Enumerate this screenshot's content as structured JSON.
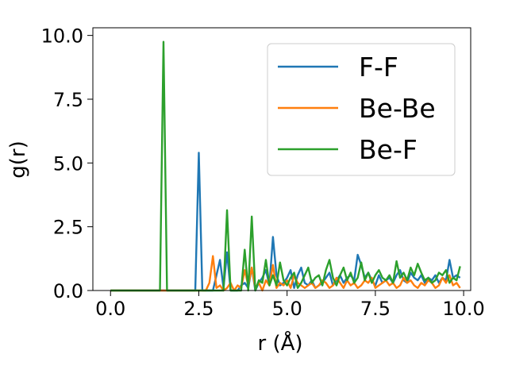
{
  "chart_data": {
    "type": "line",
    "title": "",
    "xlabel": "r (Å)",
    "ylabel": "g(r)",
    "xlim": [
      -0.5,
      10.2
    ],
    "ylim": [
      0,
      10.3
    ],
    "xticks": [
      "0.0",
      "2.5",
      "5.0",
      "7.5",
      "10.0"
    ],
    "yticks": [
      "0.0",
      "2.5",
      "5.0",
      "7.5",
      "10.0"
    ],
    "xtick_values": [
      0,
      2.5,
      5.0,
      7.5,
      10.0
    ],
    "ytick_values": [
      0,
      2.5,
      5.0,
      7.5,
      10.0
    ],
    "grid": false,
    "legend_position": "top-right",
    "x_step": 0.1,
    "series": [
      {
        "name": "F-F",
        "color": "#1f77b4",
        "values": [
          0,
          0,
          0,
          0,
          0,
          0,
          0,
          0,
          0,
          0,
          0,
          0,
          0,
          0,
          0,
          0,
          0,
          0,
          0,
          0,
          0,
          0,
          0,
          0,
          0,
          5.4,
          0,
          0,
          0,
          0,
          0.6,
          1.2,
          0.1,
          1.5,
          0,
          0,
          0,
          0.2,
          0.3,
          0.1,
          0.9,
          0,
          0.3,
          0.5,
          0.8,
          0.2,
          2.1,
          0.6,
          0.2,
          0.3,
          0.5,
          0.8,
          0.1,
          0.6,
          0.9,
          0.3,
          0.2,
          0.4,
          0.1,
          0.2,
          0.3,
          0.5,
          0.7,
          0.2,
          0.4,
          0.6,
          0.3,
          0.5,
          0.6,
          0.4,
          1.4,
          1.0,
          0.5,
          0.7,
          0.4,
          0.2,
          0.6,
          0.3,
          0.4,
          0.5,
          0.3,
          0.6,
          0.8,
          0.4,
          0.3,
          0.7,
          0.5,
          0.4,
          0.6,
          0.3,
          0.5,
          0.4,
          0.6,
          0.3,
          0.5,
          0.4,
          1.2,
          0.5,
          0.6,
          0.5
        ]
      },
      {
        "name": "Be-Be",
        "color": "#ff7f0e",
        "values": [
          0,
          0,
          0,
          0,
          0,
          0,
          0,
          0,
          0,
          0,
          0,
          0,
          0,
          0,
          0,
          0,
          0,
          0,
          0,
          0,
          0,
          0,
          0,
          0,
          0,
          0,
          0,
          0,
          0.3,
          1.35,
          0.1,
          0.2,
          0,
          0.1,
          0.3,
          0,
          0.2,
          0.1,
          0.8,
          0.2,
          0.9,
          0.1,
          0.3,
          0,
          0.4,
          0.2,
          1.0,
          0.1,
          0.3,
          0.2,
          0.4,
          0.1,
          0.6,
          0.3,
          0.2,
          0.1,
          0.2,
          0.3,
          0.1,
          0.2,
          0.4,
          0.3,
          0.1,
          0.2,
          0.5,
          0.3,
          0.1,
          0.4,
          0.2,
          0.3,
          0.1,
          0.2,
          0.4,
          0.3,
          0.5,
          0.1,
          0.2,
          0.3,
          0.4,
          0.2,
          0.3,
          0.1,
          0.2,
          0.5,
          0.3,
          0.4,
          0.2,
          0.1,
          0.3,
          0.2,
          0.4,
          0.3,
          0.1,
          0.2,
          0.5,
          0.3,
          0.6,
          0.2,
          0.3,
          0.1
        ]
      },
      {
        "name": "Be-F",
        "color": "#2ca02c",
        "values": [
          0,
          0,
          0,
          0,
          0,
          0,
          0,
          0,
          0,
          0,
          0,
          0,
          0,
          0,
          0,
          9.75,
          0,
          0,
          0,
          0,
          0,
          0,
          0,
          0,
          0,
          0,
          0,
          0,
          0,
          0,
          0,
          0,
          0,
          3.15,
          0,
          0,
          0,
          0,
          1.6,
          0,
          2.9,
          0,
          0.4,
          0.3,
          1.2,
          0.2,
          0.6,
          0.2,
          1.1,
          0.4,
          0.2,
          0.5,
          0.7,
          0.1,
          0.3,
          0.6,
          0.9,
          0.3,
          0.5,
          0.6,
          0.2,
          0.8,
          1.2,
          0.5,
          0.2,
          0.6,
          0.9,
          0.4,
          0.7,
          0.3,
          0.5,
          1.1,
          0.4,
          0.7,
          0.3,
          0.6,
          0.8,
          0.5,
          0.4,
          0.6,
          0.3,
          1.15,
          0.5,
          0.7,
          0.4,
          0.9,
          0.6,
          1.05,
          0.7,
          0.4,
          0.5,
          0.3,
          0.4,
          0.7,
          0.6,
          0.8,
          0.3,
          0.5,
          0.4,
          0.95
        ]
      }
    ]
  }
}
